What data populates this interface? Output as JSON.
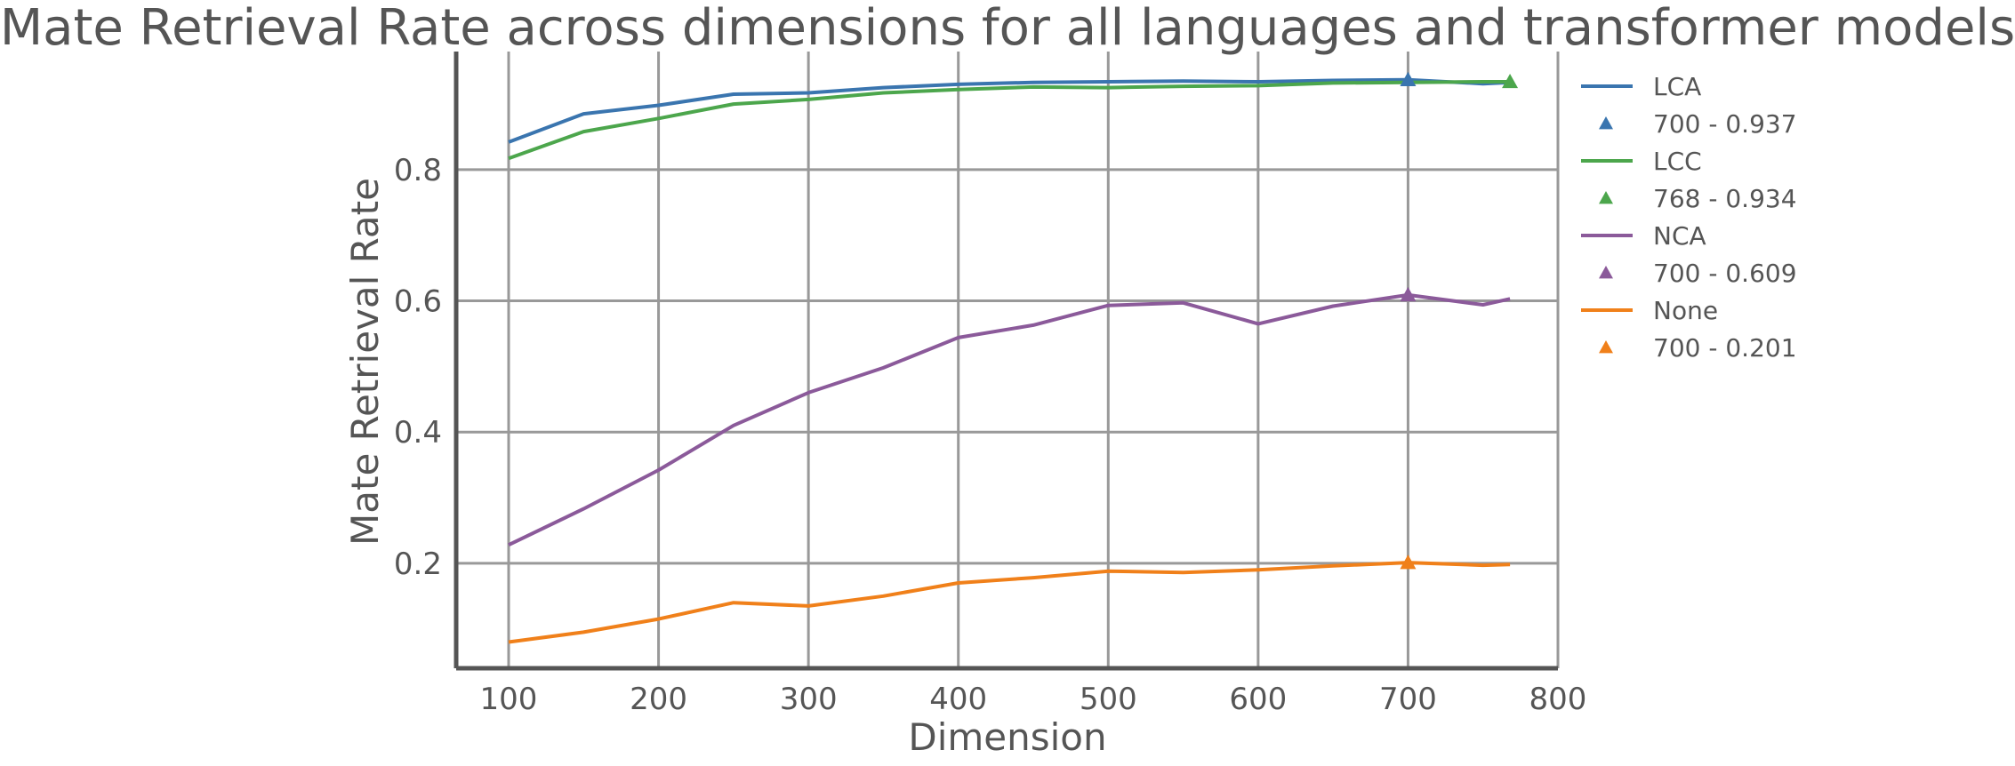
{
  "chart_data": {
    "type": "line",
    "title": "Mate Retrieval Rate across dimensions for all languages and transformer models",
    "xlabel": "Dimension",
    "ylabel": "Mate Retrieval Rate",
    "xlim": [
      65,
      800
    ],
    "ylim": [
      0.04,
      0.98
    ],
    "xticks": [
      100,
      200,
      300,
      400,
      500,
      600,
      700,
      800
    ],
    "yticks": [
      0.2,
      0.4,
      0.6,
      0.8
    ],
    "xtick_labels": [
      "100",
      "200",
      "300",
      "400",
      "500",
      "600",
      "700",
      "800"
    ],
    "ytick_labels": [
      "0.2",
      "0.4",
      "0.6",
      "0.8"
    ],
    "grid": true,
    "legend_position": "outside-right",
    "x": [
      100,
      150,
      200,
      250,
      300,
      350,
      400,
      450,
      500,
      550,
      600,
      650,
      700,
      750,
      768
    ],
    "series": [
      {
        "name": "LCA",
        "color": "#3a75af",
        "values": [
          0.842,
          0.885,
          0.898,
          0.915,
          0.917,
          0.925,
          0.93,
          0.933,
          0.934,
          0.935,
          0.934,
          0.936,
          0.937,
          0.931,
          0.933
        ],
        "marker": {
          "x": 700,
          "y": 0.937,
          "label": "700 - 0.937"
        }
      },
      {
        "name": "LCC",
        "color": "#4ca64c",
        "values": [
          0.817,
          0.858,
          0.878,
          0.9,
          0.907,
          0.917,
          0.922,
          0.926,
          0.925,
          0.927,
          0.928,
          0.932,
          0.933,
          0.934,
          0.934
        ],
        "marker": {
          "x": 768,
          "y": 0.934,
          "label": "768 - 0.934"
        }
      },
      {
        "name": "NCA",
        "color": "#8b5a9a",
        "values": [
          0.228,
          0.283,
          0.342,
          0.41,
          0.46,
          0.498,
          0.544,
          0.563,
          0.593,
          0.597,
          0.565,
          0.592,
          0.609,
          0.594,
          0.603
        ],
        "marker": {
          "x": 700,
          "y": 0.609,
          "label": "700 - 0.609"
        }
      },
      {
        "name": "None",
        "color": "#f0801a",
        "values": [
          0.08,
          0.095,
          0.115,
          0.14,
          0.135,
          0.15,
          0.17,
          0.178,
          0.188,
          0.186,
          0.19,
          0.196,
          0.201,
          0.197,
          0.198
        ],
        "marker": {
          "x": 700,
          "y": 0.201,
          "label": "700 - 0.201"
        }
      }
    ]
  }
}
